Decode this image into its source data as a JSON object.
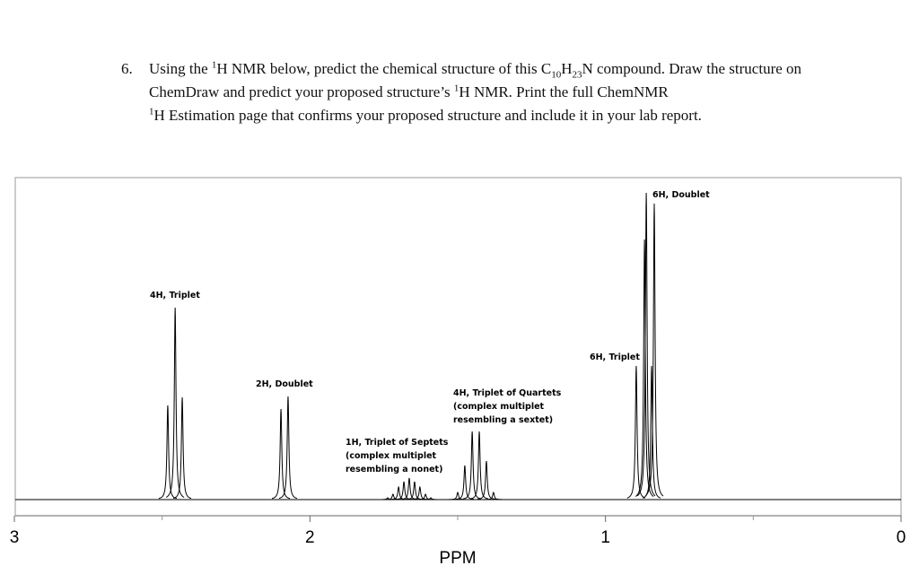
{
  "question": {
    "number": "6.",
    "parts": [
      "Using the ",
      "1",
      "H NMR below, predict the chemical structure of this C",
      "10",
      "H",
      "23",
      "N compound. Draw the structure on ChemDraw and predict your proposed structure’s ",
      "1",
      "H NMR. Print the full ChemNMR ",
      "1",
      "H Estimation page that confirms your proposed structure and include it in your lab report."
    ]
  },
  "chart_data": {
    "type": "spectrum",
    "xlabel": "PPM",
    "xlim": [
      3,
      0
    ],
    "xticks": [
      3,
      2,
      1,
      0
    ],
    "ylim": [
      0,
      360
    ],
    "color": "#000000",
    "x": [
      2.481,
      2.456,
      2.432,
      2.098,
      2.074,
      1.737,
      1.719,
      1.7,
      1.682,
      1.664,
      1.646,
      1.628,
      1.609,
      1.591,
      1.5,
      1.476,
      1.451,
      1.427,
      1.403,
      1.379,
      0.896,
      0.868,
      0.844,
      0.862,
      0.835
    ],
    "values": [
      105,
      214,
      114,
      101,
      115,
      2,
      6,
      14,
      20,
      24,
      20,
      14,
      6,
      2,
      8,
      38,
      76,
      76,
      43,
      8,
      149,
      290,
      149,
      342,
      330
    ],
    "annotations": [
      [
        "4H, Triplet"
      ],
      [
        "2H, Doublet"
      ],
      [
        "1H, Triplet of Septets",
        "(complex multiplet",
        "resembling a nonet)"
      ],
      [
        "4H, Triplet of Quartets",
        "(complex multiplet",
        "resembling a sextet)"
      ],
      [
        "6H, Triplet"
      ],
      [
        "6H, Doublet"
      ]
    ]
  }
}
